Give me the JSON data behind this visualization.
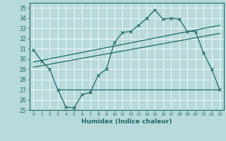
{
  "bg_color": "#b8dada",
  "line_color": "#1a6b6b",
  "grid_color": "#d4eeee",
  "xlabel": "Humidex (Indice chaleur)",
  "xlim": [
    -0.5,
    23.5
  ],
  "ylim": [
    25,
    35.5
  ],
  "yticks": [
    25,
    26,
    27,
    28,
    29,
    30,
    31,
    32,
    33,
    34,
    35
  ],
  "xticks": [
    0,
    1,
    2,
    3,
    4,
    5,
    6,
    7,
    8,
    9,
    10,
    11,
    12,
    13,
    14,
    15,
    16,
    17,
    18,
    19,
    20,
    21,
    22,
    23
  ],
  "curve_x": [
    0,
    1,
    2,
    3,
    4,
    5,
    6,
    7,
    8,
    9,
    10,
    11,
    12,
    13,
    14,
    15,
    16,
    17,
    18,
    19,
    20,
    21,
    22,
    23
  ],
  "curve_y": [
    30.9,
    29.8,
    29.0,
    27.0,
    25.3,
    25.2,
    26.5,
    26.7,
    28.4,
    29.0,
    31.6,
    32.6,
    32.7,
    33.3,
    34.0,
    34.8,
    33.9,
    34.0,
    33.9,
    32.7,
    32.7,
    30.6,
    29.0,
    27.0
  ],
  "line1_x": [
    0,
    23
  ],
  "line1_y": [
    29.7,
    33.3
  ],
  "line2_x": [
    0,
    23
  ],
  "line2_y": [
    29.2,
    32.5
  ],
  "hline_y": 27.0,
  "hline_x": [
    3,
    23
  ]
}
